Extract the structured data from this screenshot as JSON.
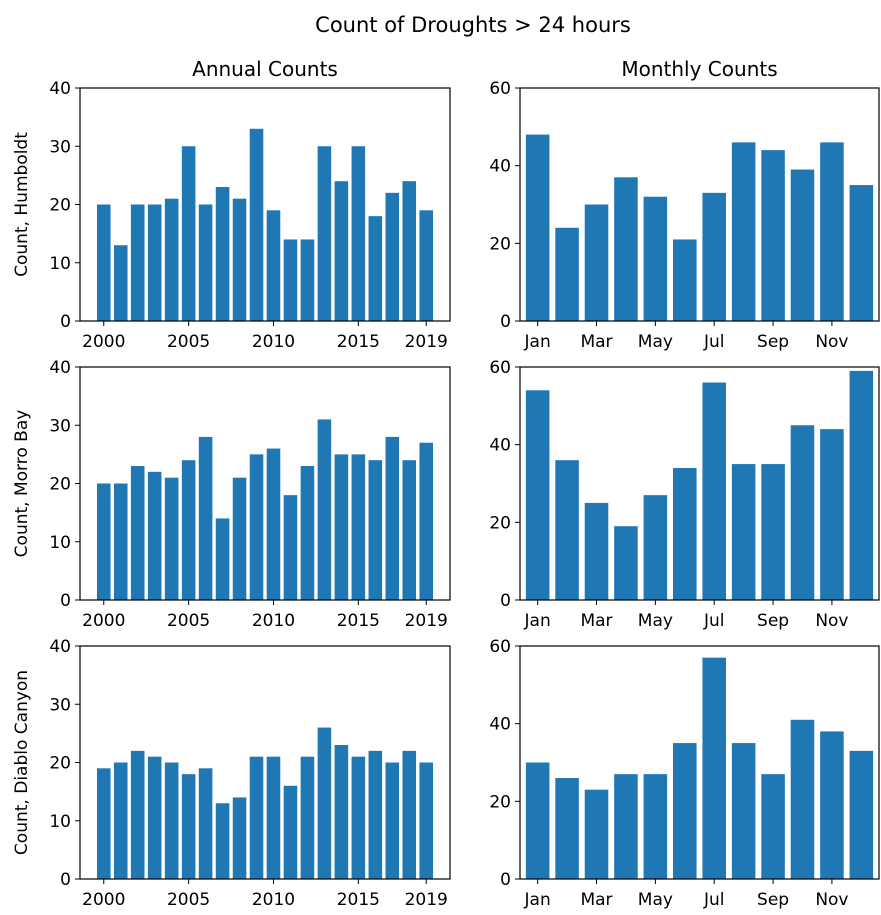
{
  "title": "Count of Droughts > 24 hours",
  "chart_data": [
    {
      "type": "bar",
      "title": "Annual Counts",
      "ylabel": "Count, Humboldt",
      "color": "#1f77b4",
      "x": [
        2000,
        2001,
        2002,
        2003,
        2004,
        2005,
        2006,
        2007,
        2008,
        2009,
        2010,
        2011,
        2012,
        2013,
        2014,
        2015,
        2016,
        2017,
        2018,
        2019
      ],
      "values": [
        20,
        13,
        20,
        20,
        21,
        30,
        20,
        23,
        21,
        33,
        19,
        14,
        14,
        30,
        24,
        30,
        18,
        22,
        24,
        19
      ],
      "xlim": [
        1998.6,
        2020.4
      ],
      "xticks": [
        2000,
        2005,
        2010,
        2015,
        2019
      ],
      "ylim": [
        0,
        40
      ],
      "yticks": [
        0,
        10,
        20,
        30,
        40
      ]
    },
    {
      "type": "bar",
      "title": "Monthly Counts",
      "color": "#1f77b4",
      "categories": [
        "Jan",
        null,
        "Mar",
        null,
        "May",
        null,
        "Jul",
        null,
        "Sep",
        null,
        "Nov",
        null
      ],
      "values": [
        48,
        24,
        30,
        37,
        32,
        21,
        33,
        46,
        44,
        39,
        46,
        35
      ],
      "ylim": [
        0,
        60
      ],
      "yticks": [
        0,
        20,
        40,
        60
      ]
    },
    {
      "type": "bar",
      "ylabel": "Count, Morro Bay",
      "color": "#1f77b4",
      "x": [
        2000,
        2001,
        2002,
        2003,
        2004,
        2005,
        2006,
        2007,
        2008,
        2009,
        2010,
        2011,
        2012,
        2013,
        2014,
        2015,
        2016,
        2017,
        2018,
        2019
      ],
      "values": [
        20,
        20,
        23,
        22,
        21,
        24,
        28,
        14,
        21,
        25,
        26,
        18,
        23,
        31,
        25,
        25,
        24,
        28,
        24,
        27
      ],
      "xlim": [
        1998.6,
        2020.4
      ],
      "xticks": [
        2000,
        2005,
        2010,
        2015,
        2019
      ],
      "ylim": [
        0,
        40
      ],
      "yticks": [
        0,
        10,
        20,
        30,
        40
      ]
    },
    {
      "type": "bar",
      "color": "#1f77b4",
      "categories": [
        "Jan",
        null,
        "Mar",
        null,
        "May",
        null,
        "Jul",
        null,
        "Sep",
        null,
        "Nov",
        null
      ],
      "values": [
        54,
        36,
        25,
        19,
        27,
        34,
        56,
        35,
        35,
        45,
        44,
        59
      ],
      "ylim": [
        0,
        60
      ],
      "yticks": [
        0,
        20,
        40,
        60
      ]
    },
    {
      "type": "bar",
      "ylabel": "Count, Diablo Canyon",
      "color": "#1f77b4",
      "x": [
        2000,
        2001,
        2002,
        2003,
        2004,
        2005,
        2006,
        2007,
        2008,
        2009,
        2010,
        2011,
        2012,
        2013,
        2014,
        2015,
        2016,
        2017,
        2018,
        2019
      ],
      "values": [
        19,
        20,
        22,
        21,
        20,
        18,
        19,
        13,
        14,
        21,
        21,
        16,
        21,
        26,
        23,
        21,
        22,
        20,
        22,
        20
      ],
      "xlim": [
        1998.6,
        2020.4
      ],
      "xticks": [
        2000,
        2005,
        2010,
        2015,
        2019
      ],
      "ylim": [
        0,
        40
      ],
      "yticks": [
        0,
        10,
        20,
        30,
        40
      ]
    },
    {
      "type": "bar",
      "color": "#1f77b4",
      "categories": [
        "Jan",
        null,
        "Mar",
        null,
        "May",
        null,
        "Jul",
        null,
        "Sep",
        null,
        "Nov",
        null
      ],
      "values": [
        30,
        26,
        23,
        27,
        27,
        35,
        57,
        35,
        27,
        41,
        38,
        33
      ],
      "ylim": [
        0,
        60
      ],
      "yticks": [
        0,
        20,
        40,
        60
      ]
    }
  ]
}
